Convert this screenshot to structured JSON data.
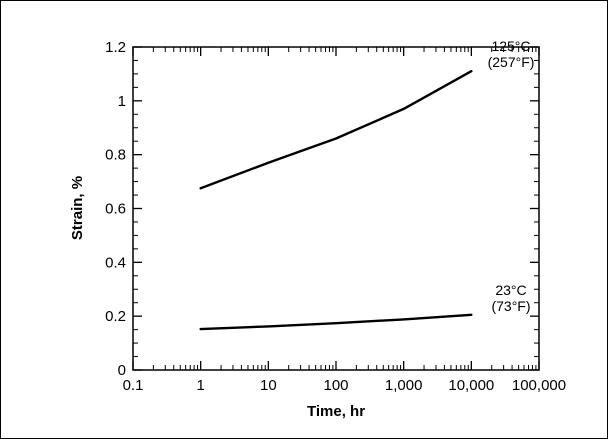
{
  "chart_data": {
    "type": "line",
    "title": "",
    "xlabel": "Time, hr",
    "ylabel": "Strain, %",
    "x_scale": "log",
    "xlim": [
      0.1,
      100000
    ],
    "ylim": [
      0,
      1.2
    ],
    "x_ticks": [
      0.1,
      1,
      10,
      100,
      1000,
      10000,
      100000
    ],
    "x_tick_labels": [
      "0.1",
      "1",
      "10",
      "100",
      "1,000",
      "10,000",
      "100,000"
    ],
    "y_ticks": [
      0,
      0.2,
      0.4,
      0.6,
      0.8,
      1.0,
      1.2
    ],
    "y_tick_labels": [
      "0",
      "0.2",
      "0.4",
      "0.6",
      "0.8",
      "1",
      "1.2"
    ],
    "grid": false,
    "series": [
      {
        "label_line1": "125°C",
        "label_line2": "(257°F)",
        "color": "#000000",
        "x": [
          1,
          10,
          100,
          1000,
          10000
        ],
        "y": [
          0.675,
          0.77,
          0.86,
          0.97,
          1.11
        ]
      },
      {
        "label_line1": "23°C",
        "label_line2": "(73°F)",
        "color": "#000000",
        "x": [
          1,
          10,
          100,
          1000,
          10000
        ],
        "y": [
          0.152,
          0.162,
          0.174,
          0.188,
          0.205
        ]
      }
    ]
  }
}
